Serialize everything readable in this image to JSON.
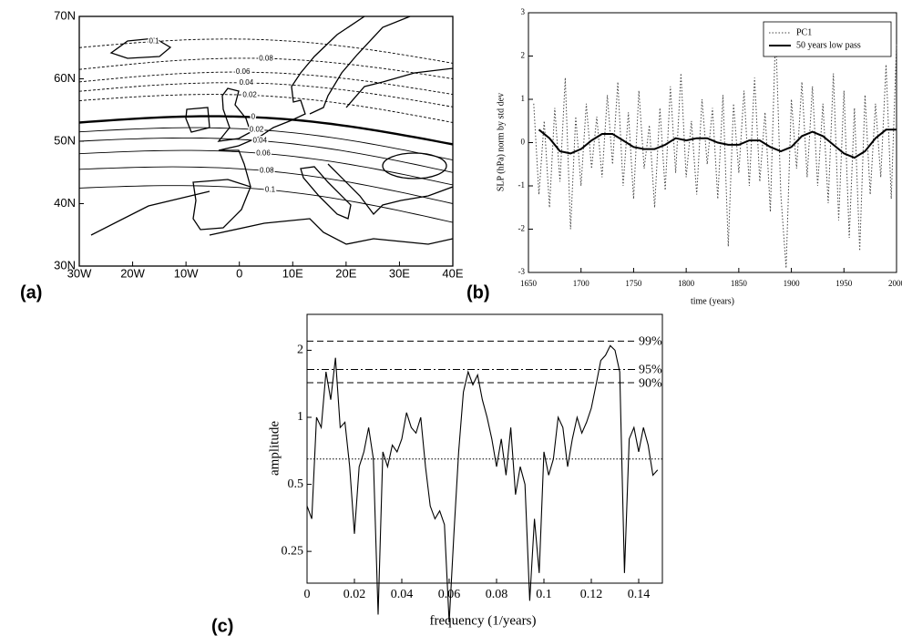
{
  "chart_data": [
    {
      "type": "contour-map",
      "panel_label": "(a)",
      "xlim": [
        -30,
        40
      ],
      "ylim": [
        30,
        70
      ],
      "xticks": [
        {
          "value": -30,
          "label": "30W"
        },
        {
          "value": -20,
          "label": "20W"
        },
        {
          "value": -10,
          "label": "10W"
        },
        0,
        {
          "value": 10,
          "label": "10E"
        },
        {
          "value": 20,
          "label": "20E"
        },
        {
          "value": 30,
          "label": "30E"
        },
        {
          "value": 40,
          "label": "40E"
        }
      ],
      "yticks": [
        {
          "value": 30,
          "label": "30N"
        },
        {
          "value": 40,
          "label": "40N"
        },
        {
          "value": 50,
          "label": "50N"
        },
        {
          "value": 60,
          "label": "60N"
        },
        {
          "value": 70,
          "label": "70N"
        }
      ],
      "contours": [
        {
          "label": "0.1",
          "dashed": true,
          "lat_west": 65,
          "lat_east": 62.5
        },
        {
          "label": "0.08",
          "dashed": true,
          "lat_west": 61.5,
          "lat_east": 60
        },
        {
          "label": "0.06",
          "dashed": true,
          "lat_west": 59.5,
          "lat_east": 57.5
        },
        {
          "label": "0.04",
          "dashed": true,
          "lat_west": 58,
          "lat_east": 55.5
        },
        {
          "label": "0.02",
          "dashed": true,
          "lat_west": 56.5,
          "lat_east": 53
        },
        {
          "label": "0",
          "dashed": false,
          "bold": true,
          "lat_west": 53,
          "lat_east": 49.5
        },
        {
          "label": "0.02",
          "dashed": false,
          "lat_west": 51.5,
          "lat_east": 47
        },
        {
          "label": "0.04",
          "dashed": false,
          "lat_west": 50,
          "lat_east": 45
        },
        {
          "label": "0.06",
          "dashed": false,
          "lat_west": 48,
          "lat_east": 43
        },
        {
          "label": "0.08",
          "dashed": false,
          "lat_west": 45.5,
          "lat_east": 40
        },
        {
          "label": "0.1",
          "dashed": false,
          "lat_west": 42.5,
          "lat_east": 37
        }
      ]
    },
    {
      "type": "line",
      "panel_label": "(b)",
      "xlabel": "time (years)",
      "ylabel": "SLP (hPa) norm by std dev",
      "xlim": [
        1650,
        2000
      ],
      "ylim": [
        -3,
        3
      ],
      "xticks": [
        1650,
        1700,
        1750,
        1800,
        1850,
        1900,
        1950,
        2000
      ],
      "yticks": [
        -3,
        -2,
        -1,
        0,
        1,
        2,
        3
      ],
      "legend": "upper right",
      "series": [
        {
          "name": "PC1",
          "color": "#444444",
          "dash": "dotted",
          "x": [
            1655,
            1660,
            1665,
            1670,
            1675,
            1680,
            1685,
            1690,
            1695,
            1700,
            1705,
            1710,
            1715,
            1720,
            1725,
            1730,
            1735,
            1740,
            1745,
            1750,
            1755,
            1760,
            1765,
            1770,
            1775,
            1780,
            1785,
            1790,
            1795,
            1800,
            1805,
            1810,
            1815,
            1820,
            1825,
            1830,
            1835,
            1840,
            1845,
            1850,
            1855,
            1860,
            1865,
            1870,
            1875,
            1880,
            1885,
            1890,
            1895,
            1900,
            1905,
            1910,
            1915,
            1920,
            1925,
            1930,
            1935,
            1940,
            1945,
            1950,
            1955,
            1960,
            1965,
            1970,
            1975,
            1980,
            1985,
            1990,
            1995,
            2000
          ],
          "values": [
            0.9,
            -1.2,
            0.5,
            -1.5,
            0.8,
            -0.9,
            1.5,
            -2.0,
            0.6,
            -1.0,
            0.9,
            -0.6,
            0.6,
            -0.8,
            1.1,
            -0.5,
            1.4,
            -1.0,
            0.7,
            -1.3,
            1.2,
            -0.6,
            0.4,
            -1.5,
            0.8,
            -1.1,
            1.3,
            -0.7,
            1.6,
            -0.8,
            0.5,
            -1.2,
            1.0,
            -0.5,
            0.8,
            -1.3,
            1.1,
            -2.4,
            0.9,
            -0.7,
            1.2,
            -1.0,
            1.5,
            -0.9,
            0.7,
            -1.6,
            2.6,
            -1.2,
            -2.9,
            1.0,
            -0.6,
            1.4,
            -0.8,
            1.3,
            -1.0,
            0.9,
            -1.4,
            1.6,
            -1.8,
            1.2,
            -2.2,
            0.8,
            -2.5,
            1.1,
            -1.2,
            0.9,
            -0.8,
            1.8,
            -1.3,
            2.3
          ]
        },
        {
          "name": "50 years low pass",
          "color": "#000000",
          "dash": "solid",
          "x": [
            1660,
            1670,
            1680,
            1690,
            1700,
            1710,
            1720,
            1730,
            1740,
            1750,
            1760,
            1770,
            1780,
            1790,
            1800,
            1810,
            1820,
            1830,
            1840,
            1850,
            1860,
            1870,
            1880,
            1890,
            1900,
            1910,
            1920,
            1930,
            1940,
            1950,
            1960,
            1970,
            1980,
            1990,
            2000
          ],
          "values": [
            0.3,
            0.1,
            -0.2,
            -0.25,
            -0.15,
            0.05,
            0.2,
            0.2,
            0.05,
            -0.1,
            -0.15,
            -0.15,
            -0.05,
            0.1,
            0.05,
            0.1,
            0.1,
            0.0,
            -0.05,
            -0.05,
            0.05,
            0.05,
            -0.1,
            -0.2,
            -0.1,
            0.15,
            0.25,
            0.15,
            -0.05,
            -0.25,
            -0.35,
            -0.2,
            0.1,
            0.3,
            0.3
          ]
        }
      ]
    },
    {
      "type": "line",
      "panel_label": "(c)",
      "xlabel": "frequency (1/years)",
      "ylabel": "amplitude",
      "log_y": true,
      "xlim": [
        0,
        0.15
      ],
      "ylim": [
        0.18,
        2.9
      ],
      "xticks": [
        0,
        0.02,
        0.04,
        0.06,
        0.08,
        0.1,
        0.12,
        0.14
      ],
      "yticks": [
        0.25,
        0.5,
        1,
        2
      ],
      "reference_lines": [
        {
          "value": 2.2,
          "label": "99%",
          "dash": "dashed"
        },
        {
          "value": 1.64,
          "label": "95%",
          "dash": "dashdot"
        },
        {
          "value": 1.43,
          "label": "90%",
          "dash": "dashed"
        },
        {
          "value": 0.65,
          "dash": "dotted"
        }
      ],
      "series": [
        {
          "color": "#000000",
          "dash": "solid",
          "x": [
            0,
            0.002,
            0.004,
            0.006,
            0.008,
            0.01,
            0.012,
            0.014,
            0.016,
            0.018,
            0.02,
            0.022,
            0.024,
            0.026,
            0.028,
            0.03,
            0.032,
            0.034,
            0.036,
            0.038,
            0.04,
            0.042,
            0.044,
            0.046,
            0.048,
            0.05,
            0.052,
            0.054,
            0.056,
            0.058,
            0.06,
            0.062,
            0.064,
            0.066,
            0.068,
            0.07,
            0.072,
            0.074,
            0.076,
            0.078,
            0.08,
            0.082,
            0.084,
            0.086,
            0.088,
            0.09,
            0.092,
            0.094,
            0.096,
            0.098,
            0.1,
            0.102,
            0.104,
            0.106,
            0.108,
            0.11,
            0.112,
            0.114,
            0.116,
            0.118,
            0.12,
            0.122,
            0.124,
            0.126,
            0.128,
            0.13,
            0.132,
            0.134,
            0.136,
            0.138,
            0.14,
            0.142,
            0.144,
            0.146,
            0.148
          ],
          "values": [
            0.4,
            0.35,
            1.0,
            0.9,
            1.6,
            1.2,
            1.85,
            0.9,
            0.95,
            0.6,
            0.3,
            0.6,
            0.7,
            0.9,
            0.65,
            0.13,
            0.7,
            0.6,
            0.75,
            0.7,
            0.8,
            1.05,
            0.9,
            0.85,
            1.0,
            0.6,
            0.4,
            0.35,
            0.38,
            0.33,
            0.12,
            0.3,
            0.7,
            1.3,
            1.6,
            1.4,
            1.55,
            1.2,
            1.0,
            0.8,
            0.6,
            0.8,
            0.55,
            0.9,
            0.45,
            0.6,
            0.5,
            0.15,
            0.35,
            0.2,
            0.7,
            0.55,
            0.65,
            1.0,
            0.9,
            0.6,
            0.8,
            1.0,
            0.85,
            0.95,
            1.1,
            1.4,
            1.8,
            1.9,
            2.1,
            2.0,
            1.6,
            0.2,
            0.8,
            0.9,
            0.7,
            0.9,
            0.75,
            0.55,
            0.58
          ]
        }
      ]
    }
  ]
}
